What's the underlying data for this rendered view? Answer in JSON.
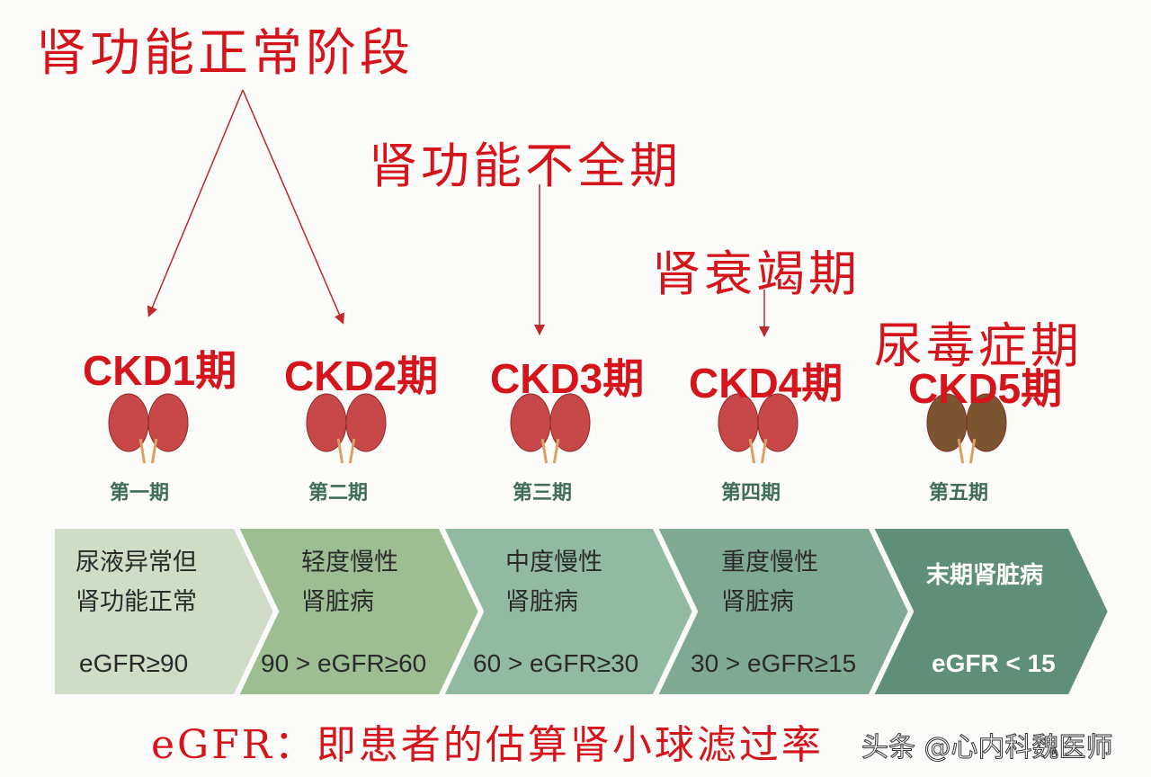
{
  "headings": {
    "normal_phase": "肾功能正常阶段",
    "insufficiency_phase": "肾功能不全期",
    "failure_phase": "肾衰竭期",
    "uremia_phase": "尿毒症期"
  },
  "stages": [
    {
      "ckd": "CKD1期",
      "label": "第一期",
      "desc1": "尿液异常但",
      "desc2": "肾功能正常",
      "egfr": "eGFR≥90",
      "color": "#cfddc6"
    },
    {
      "ckd": "CKD2期",
      "label": "第二期",
      "desc1": "轻度慢性",
      "desc2": "肾脏病",
      "egfr": "90 > eGFR≥60",
      "color": "#9dbd92"
    },
    {
      "ckd": "CKD3期",
      "label": "第三期",
      "desc1": "中度慢性",
      "desc2": "肾脏病",
      "egfr": "60 > eGFR≥30",
      "color": "#92baa3"
    },
    {
      "ckd": "CKD4期",
      "label": "第四期",
      "desc1": "重度慢性",
      "desc2": "肾脏病",
      "egfr": "30 > eGFR≥15",
      "color": "#80a994"
    },
    {
      "ckd": "CKD5期",
      "label": "第五期",
      "desc1": "末期肾脏病",
      "desc2": "",
      "egfr": "eGFR < 15",
      "color": "#5f8f78"
    }
  ],
  "footnote": "eGFR：即患者的估算肾小球滤过率",
  "watermark": "头条 @心内科魏医师",
  "colors": {
    "accent_red": "#d5141b",
    "kidney": "#c8484a",
    "kidney_stage5": "#7a5530"
  }
}
